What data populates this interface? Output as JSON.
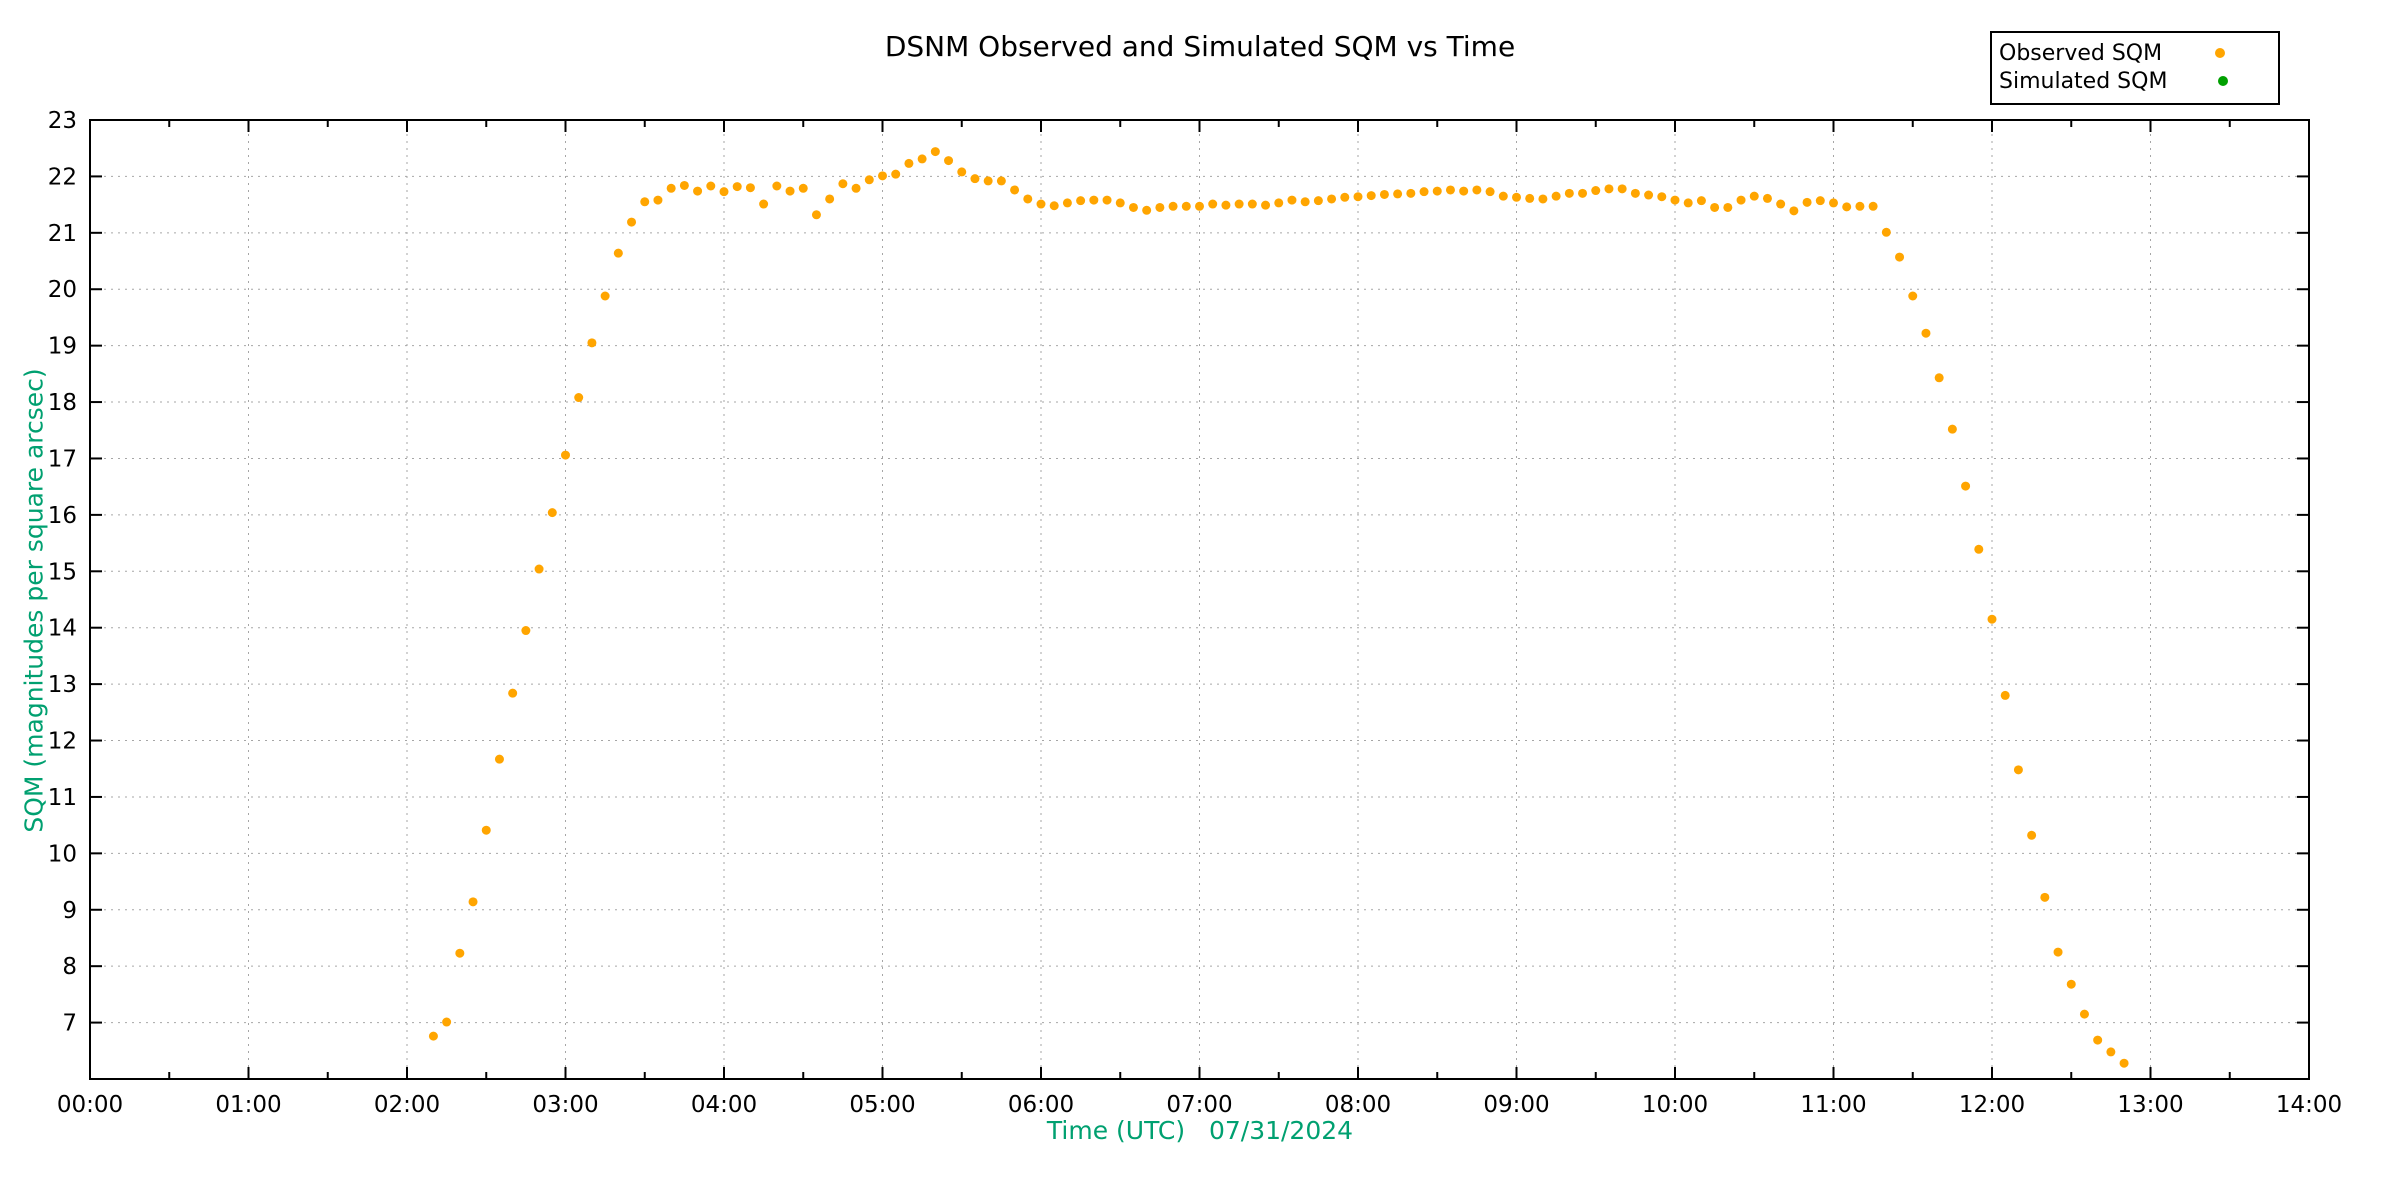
{
  "chart_data": {
    "type": "scatter",
    "title": "DSNM Observed and Simulated SQM vs Time",
    "xlabel": "Time (UTC)   07/31/2024",
    "ylabel": "SQM (magnitudes per square arcsec)",
    "axis_title_color": "#00a070",
    "grid": true,
    "grid_color": "#a6a6a6",
    "border_color": "#000000",
    "background_color": "#ffffff",
    "legend_position": "top-right",
    "xlim_hours": [
      0,
      14
    ],
    "ylim": [
      6,
      23
    ],
    "x_tick_labels": [
      "00:00",
      "01:00",
      "02:00",
      "03:00",
      "04:00",
      "05:00",
      "06:00",
      "07:00",
      "08:00",
      "09:00",
      "10:00",
      "11:00",
      "12:00",
      "13:00",
      "14:00"
    ],
    "x_minor_tick_interval_hours": 0.5,
    "y_tick_values": [
      7,
      8,
      9,
      10,
      11,
      12,
      13,
      14,
      15,
      16,
      17,
      18,
      19,
      20,
      21,
      22,
      23
    ],
    "series": [
      {
        "name": "Observed SQM",
        "color": "#ffa500",
        "points": [
          [
            "02:10",
            6.76
          ],
          [
            "02:15",
            7.01
          ],
          [
            "02:20",
            8.23
          ],
          [
            "02:25",
            9.14
          ],
          [
            "02:30",
            10.41
          ],
          [
            "02:35",
            11.67
          ],
          [
            "02:40",
            12.84
          ],
          [
            "02:45",
            13.95
          ],
          [
            "02:50",
            15.04
          ],
          [
            "02:55",
            16.04
          ],
          [
            "03:00",
            17.06
          ],
          [
            "03:05",
            18.08
          ],
          [
            "03:10",
            19.05
          ],
          [
            "03:15",
            19.88
          ],
          [
            "03:20",
            20.64
          ],
          [
            "03:25",
            21.19
          ],
          [
            "03:30",
            21.55
          ],
          [
            "03:35",
            21.58
          ],
          [
            "03:40",
            21.79
          ],
          [
            "03:45",
            21.84
          ],
          [
            "03:50",
            21.74
          ],
          [
            "03:55",
            21.83
          ],
          [
            "04:00",
            21.73
          ],
          [
            "04:05",
            21.82
          ],
          [
            "04:10",
            21.8
          ],
          [
            "04:15",
            21.51
          ],
          [
            "04:20",
            21.83
          ],
          [
            "04:25",
            21.74
          ],
          [
            "04:30",
            21.79
          ],
          [
            "04:35",
            21.32
          ],
          [
            "04:40",
            21.6
          ],
          [
            "04:45",
            21.87
          ],
          [
            "04:50",
            21.79
          ],
          [
            "04:55",
            21.94
          ],
          [
            "05:00",
            22.01
          ],
          [
            "05:05",
            22.04
          ],
          [
            "05:10",
            22.23
          ],
          [
            "05:15",
            22.31
          ],
          [
            "05:20",
            22.44
          ],
          [
            "05:25",
            22.28
          ],
          [
            "05:30",
            22.08
          ],
          [
            "05:35",
            21.96
          ],
          [
            "05:40",
            21.92
          ],
          [
            "05:45",
            21.92
          ],
          [
            "05:50",
            21.76
          ],
          [
            "05:55",
            21.6
          ],
          [
            "06:00",
            21.51
          ],
          [
            "06:05",
            21.48
          ],
          [
            "06:10",
            21.53
          ],
          [
            "06:15",
            21.57
          ],
          [
            "06:20",
            21.58
          ],
          [
            "06:25",
            21.58
          ],
          [
            "06:30",
            21.53
          ],
          [
            "06:35",
            21.45
          ],
          [
            "06:40",
            21.4
          ],
          [
            "06:45",
            21.45
          ],
          [
            "06:50",
            21.47
          ],
          [
            "06:55",
            21.47
          ],
          [
            "07:00",
            21.47
          ],
          [
            "07:05",
            21.51
          ],
          [
            "07:10",
            21.49
          ],
          [
            "07:15",
            21.51
          ],
          [
            "07:20",
            21.51
          ],
          [
            "07:25",
            21.49
          ],
          [
            "07:30",
            21.53
          ],
          [
            "07:35",
            21.58
          ],
          [
            "07:40",
            21.55
          ],
          [
            "07:45",
            21.57
          ],
          [
            "07:50",
            21.6
          ],
          [
            "07:55",
            21.63
          ],
          [
            "08:00",
            21.64
          ],
          [
            "08:05",
            21.66
          ],
          [
            "08:10",
            21.68
          ],
          [
            "08:15",
            21.69
          ],
          [
            "08:20",
            21.7
          ],
          [
            "08:25",
            21.73
          ],
          [
            "08:30",
            21.74
          ],
          [
            "08:35",
            21.76
          ],
          [
            "08:40",
            21.74
          ],
          [
            "08:45",
            21.76
          ],
          [
            "08:50",
            21.73
          ],
          [
            "08:55",
            21.65
          ],
          [
            "09:00",
            21.63
          ],
          [
            "09:05",
            21.61
          ],
          [
            "09:10",
            21.6
          ],
          [
            "09:15",
            21.65
          ],
          [
            "09:20",
            21.7
          ],
          [
            "09:25",
            21.7
          ],
          [
            "09:30",
            21.75
          ],
          [
            "09:35",
            21.78
          ],
          [
            "09:40",
            21.78
          ],
          [
            "09:45",
            21.7
          ],
          [
            "09:50",
            21.67
          ],
          [
            "09:55",
            21.64
          ],
          [
            "10:00",
            21.58
          ],
          [
            "10:05",
            21.53
          ],
          [
            "10:10",
            21.57
          ],
          [
            "10:15",
            21.45
          ],
          [
            "10:20",
            21.45
          ],
          [
            "10:25",
            21.58
          ],
          [
            "10:30",
            21.65
          ],
          [
            "10:35",
            21.61
          ],
          [
            "10:40",
            21.51
          ],
          [
            "10:45",
            21.39
          ],
          [
            "10:50",
            21.54
          ],
          [
            "10:55",
            21.57
          ],
          [
            "11:00",
            21.53
          ],
          [
            "11:05",
            21.46
          ],
          [
            "11:10",
            21.47
          ],
          [
            "11:15",
            21.47
          ],
          [
            "11:20",
            21.01
          ],
          [
            "11:25",
            20.57
          ],
          [
            "11:30",
            19.88
          ],
          [
            "11:35",
            19.22
          ],
          [
            "11:40",
            18.43
          ],
          [
            "11:45",
            17.52
          ],
          [
            "11:50",
            16.51
          ],
          [
            "11:55",
            15.39
          ],
          [
            "12:00",
            14.15
          ],
          [
            "12:05",
            12.8
          ],
          [
            "12:10",
            11.48
          ],
          [
            "12:15",
            10.32
          ],
          [
            "12:20",
            9.22
          ],
          [
            "12:25",
            8.25
          ],
          [
            "12:30",
            7.68
          ],
          [
            "12:35",
            7.15
          ],
          [
            "12:40",
            6.69
          ],
          [
            "12:45",
            6.48
          ],
          [
            "12:50",
            6.28
          ]
        ]
      },
      {
        "name": "Simulated SQM",
        "color": "#00a000",
        "points": []
      }
    ]
  }
}
